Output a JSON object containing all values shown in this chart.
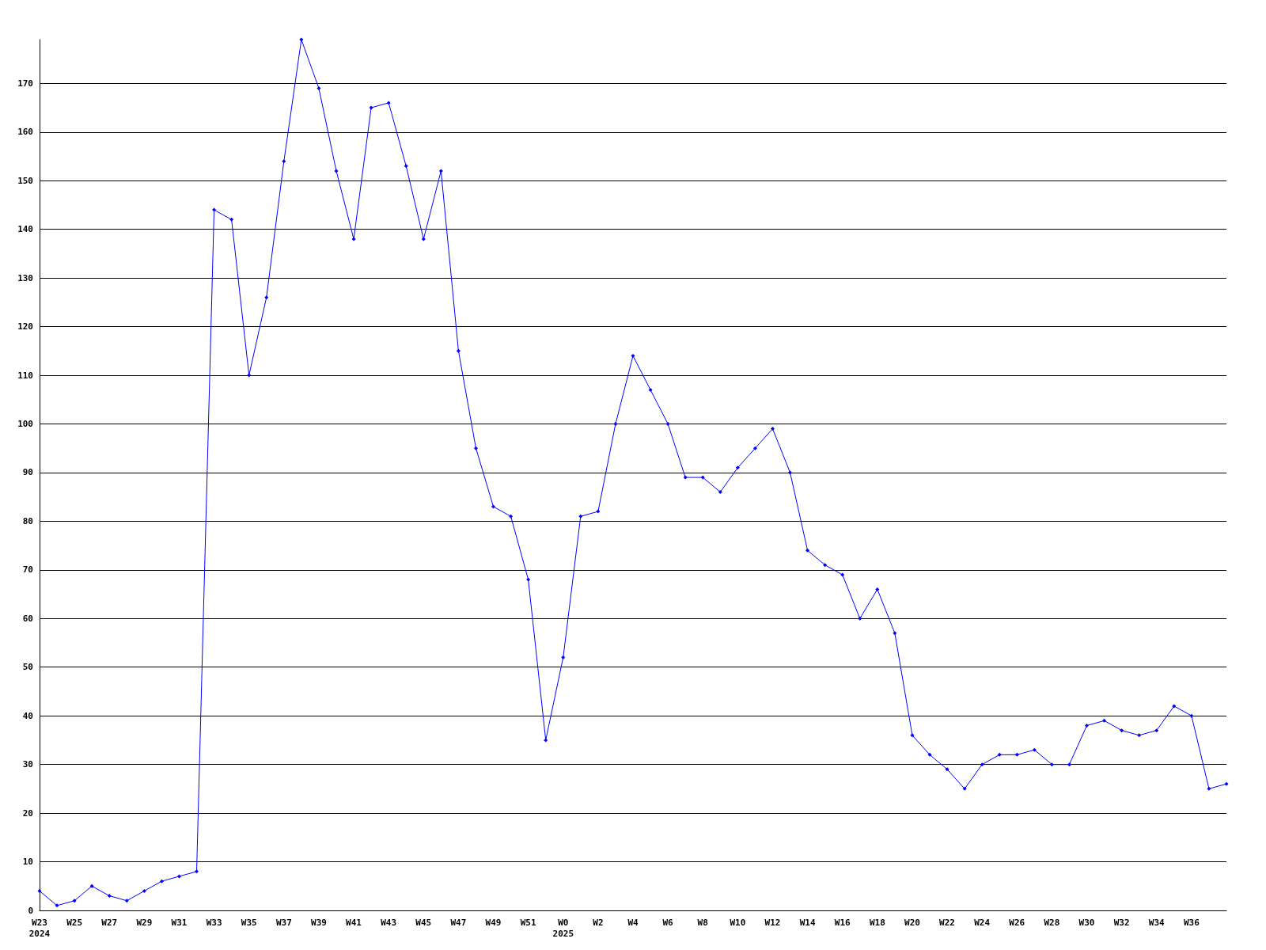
{
  "chart_data": {
    "type": "line",
    "categories": [
      "W23\n2024",
      null,
      "W25",
      null,
      "W27",
      null,
      "W29",
      null,
      "W31",
      null,
      "W33",
      null,
      "W35",
      null,
      "W37",
      null,
      "W39",
      null,
      "W41",
      null,
      "W43",
      null,
      "W45",
      null,
      "W47",
      null,
      "W49",
      null,
      "W51",
      null,
      "W0\n2025",
      null,
      "W2",
      null,
      "W4",
      null,
      "W6",
      null,
      "W8",
      null,
      "W10",
      null,
      "W12",
      null,
      "W14",
      null,
      "W16",
      null,
      "W18",
      null,
      "W20",
      null,
      "W22",
      null,
      "W24",
      null,
      "W26",
      null,
      "W28",
      null,
      "W30",
      null,
      "W32",
      null,
      "W34",
      null,
      "W36",
      null,
      null
    ],
    "series": [
      {
        "color": "#0000ff",
        "values": [
          4,
          1,
          2,
          5,
          3,
          2,
          4,
          6,
          7,
          8,
          144,
          142,
          110,
          126,
          154,
          179,
          169,
          152,
          138,
          165,
          166,
          153,
          138,
          152,
          115,
          95,
          83,
          81,
          68,
          35,
          52,
          81,
          82,
          100,
          114,
          107,
          100,
          89,
          89,
          86,
          91,
          95,
          99,
          90,
          74,
          71,
          69,
          60,
          66,
          57,
          36,
          32,
          29,
          25,
          30,
          32,
          32,
          33,
          30,
          30,
          38,
          39,
          37,
          36,
          37,
          42,
          40,
          25,
          26
        ]
      }
    ],
    "ylim": [
      0,
      179
    ],
    "yticks": [
      0,
      10,
      20,
      30,
      40,
      50,
      60,
      70,
      80,
      90,
      100,
      110,
      120,
      130,
      140,
      150,
      160,
      170
    ],
    "grid": "y",
    "marker": "diamond",
    "line_style": "solid"
  }
}
